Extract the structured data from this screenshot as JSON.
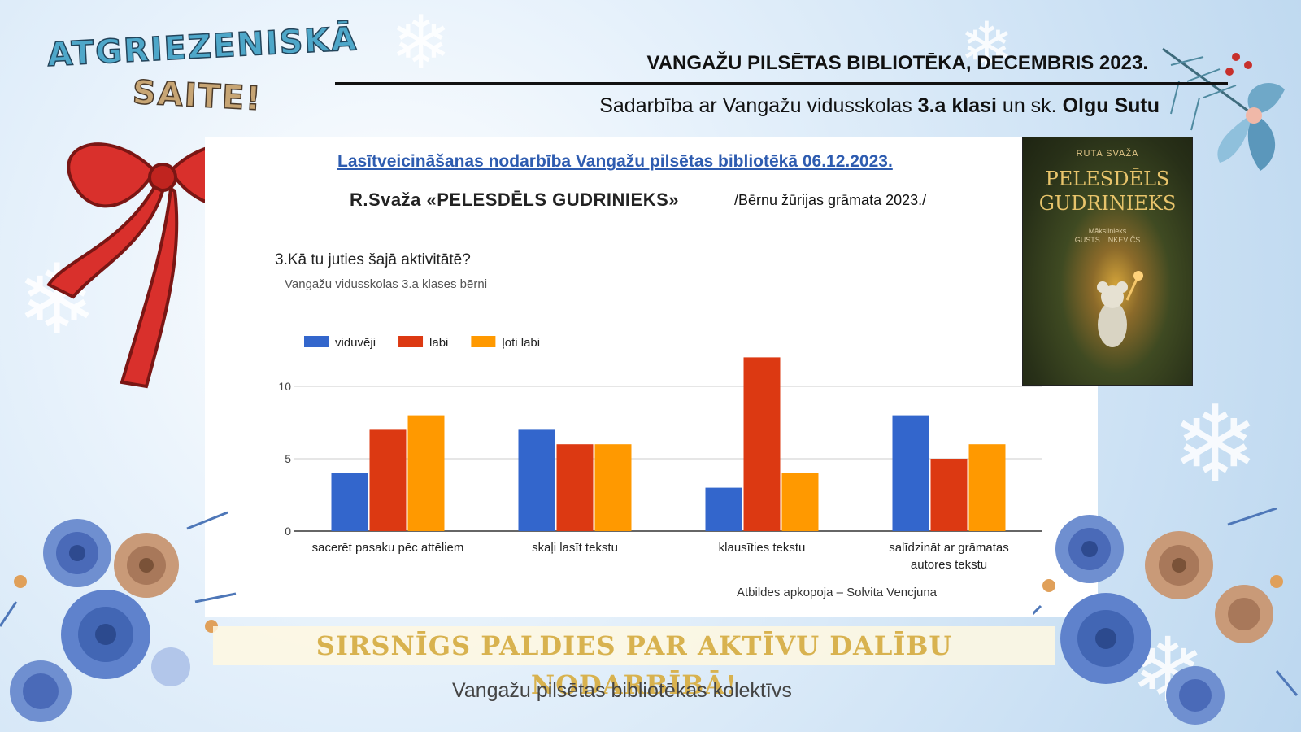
{
  "badge": {
    "line1": "ATGRIEZENISKĀ",
    "line2": "SAITE!"
  },
  "header": {
    "title": "VANGAŽU PILSĒTAS BIBLIOTĒKA, DECEMBRIS 2023.",
    "subtitle_prefix": "Sadarbība ar Vangažu vidusskolas ",
    "subtitle_class": "3.a klasi",
    "subtitle_mid": " un sk. ",
    "subtitle_teacher": "Olgu Sutu"
  },
  "panel": {
    "study_title": "Lasītveicināšanas nodarbība Vangažu pilsētas bibliotēkā 06.12.2023.",
    "book_line": "R.Svaža «PELESDĒLS GUDRINIEKS»",
    "jury_note": "/Bērnu žūrijas grāmata 2023./",
    "question": "3.Kā tu juties šajā aktivitātē?",
    "question_sub": "Vangažu vidusskolas 3.a klases bērni",
    "credit": "Atbildes apkopoja – Solvita Vencjuna"
  },
  "book_cover": {
    "author": "RUTA SVAŽA",
    "title_line1": "PELESDĒLS",
    "title_line2": "GUDRINIEKS",
    "illustrator_line1": "Mākslinieks",
    "illustrator_line2": "GUSTS LINKEVIČS"
  },
  "footer": {
    "thanks": "SIRSNĪGS PALDIES PAR AKTĪVU DALĪBU NODARBĪBĀ!",
    "team": "Vangažu pilsētas bibliotēkas kolektīvs"
  },
  "chart_data": {
    "type": "bar",
    "categories": [
      "sacerēt pasaku pēc attēliem",
      "skaļi lasīt tekstu",
      "klausīties tekstu",
      "salīdzināt ar grāmatas autores tekstu"
    ],
    "category_lines": [
      [
        "sacerēt pasaku pēc attēliem"
      ],
      [
        "skaļi lasīt tekstu"
      ],
      [
        "klausīties tekstu"
      ],
      [
        "salīdzināt ar grāmatas",
        "autores tekstu"
      ]
    ],
    "series": [
      {
        "name": "viduvēji",
        "color": "#3366cc",
        "values": [
          4,
          7,
          3,
          8
        ]
      },
      {
        "name": "labi",
        "color": "#dc3912",
        "values": [
          7,
          6,
          12,
          5
        ]
      },
      {
        "name": "ļoti labi",
        "color": "#ff9900",
        "values": [
          8,
          6,
          4,
          6
        ]
      }
    ],
    "yticks": [
      0,
      5,
      10
    ],
    "ylim": [
      0,
      12.5
    ],
    "grid": true,
    "legend": "top-left"
  }
}
